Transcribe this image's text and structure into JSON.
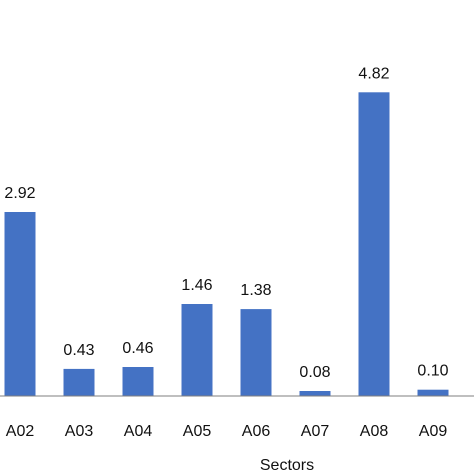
{
  "chart_data": {
    "type": "bar",
    "categories": [
      "A02",
      "A03",
      "A04",
      "A05",
      "A06",
      "A07",
      "A08",
      "A09"
    ],
    "values": [
      2.92,
      0.43,
      0.46,
      1.46,
      1.38,
      0.08,
      4.82,
      0.1
    ],
    "data_labels": [
      "2.92",
      "0.43",
      "0.46",
      "1.46",
      "1.38",
      "0.08",
      "4.82",
      "0.10"
    ],
    "xlabel": "Sectors",
    "ylabel": "",
    "title": "",
    "ylim": [
      0,
      5
    ],
    "grid": false,
    "legend": "none",
    "colors": {
      "bar": "#4472C4",
      "axis": "#7F7F7F",
      "text": "#111111"
    }
  }
}
